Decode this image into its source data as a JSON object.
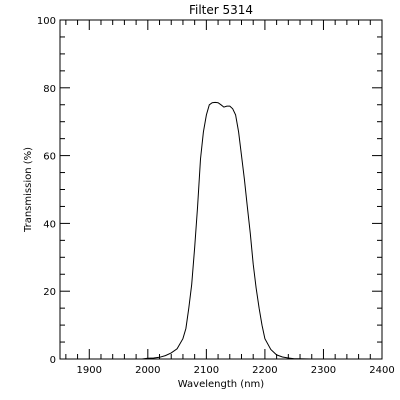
{
  "chart_data": {
    "type": "line",
    "title": "Filter 5314",
    "xlabel": "Wavelength (nm)",
    "ylabel": "Transmission (%)",
    "xlim": [
      1850,
      2400
    ],
    "ylim": [
      0,
      100
    ],
    "x_ticks": [
      1900,
      2000,
      2100,
      2200,
      2300,
      2400
    ],
    "y_ticks": [
      0,
      20,
      40,
      60,
      80,
      100
    ],
    "x_minor_step": 20,
    "y_minor_step": 5,
    "grid": false,
    "series": [
      {
        "x": [
          1960,
          1990,
          2000,
          2010,
          2020,
          2030,
          2040,
          2050,
          2060,
          2065,
          2070,
          2075,
          2080,
          2085,
          2090,
          2095,
          2100,
          2105,
          2110,
          2115,
          2120,
          2125,
          2130,
          2135,
          2140,
          2145,
          2150,
          2155,
          2160,
          2165,
          2170,
          2175,
          2180,
          2185,
          2190,
          2195,
          2200,
          2210,
          2220,
          2230,
          2240,
          2250,
          2260,
          2280,
          2310
        ],
        "y": [
          0,
          0,
          0.2,
          0.3,
          0.5,
          1,
          1.8,
          3,
          6,
          9,
          15,
          22,
          33,
          45,
          59,
          67,
          72,
          75,
          75.6,
          75.7,
          75.6,
          75,
          74.3,
          74.6,
          74.6,
          73.8,
          72,
          67,
          60,
          53,
          45,
          37,
          28,
          21,
          15,
          10,
          6,
          2.8,
          1.2,
          0.6,
          0.3,
          0.1,
          0.05,
          0,
          0
        ]
      }
    ]
  }
}
